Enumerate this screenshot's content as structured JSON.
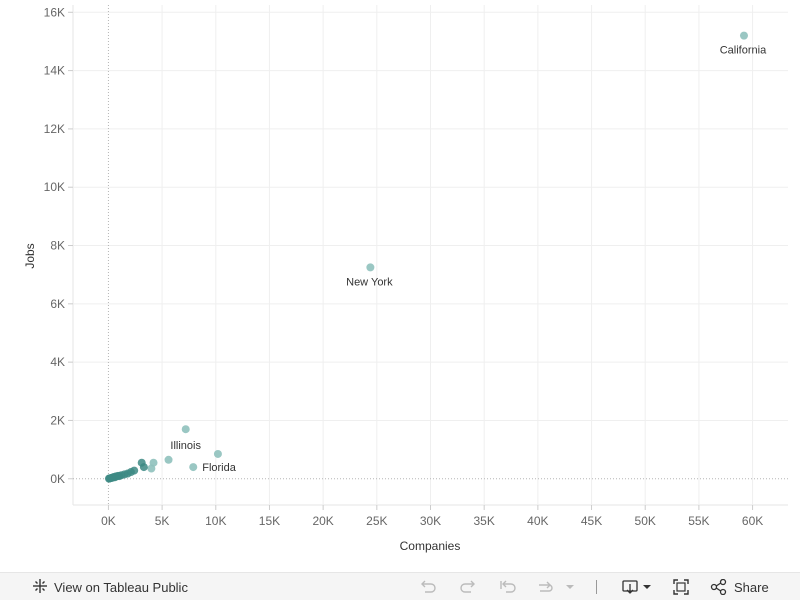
{
  "chart_data": {
    "type": "scatter",
    "title": "",
    "xlabel": "Companies",
    "ylabel": "Jobs",
    "xlim": [
      -3300,
      63300
    ],
    "ylim": [
      -900,
      16250
    ],
    "xticks": [
      0,
      5000,
      10000,
      15000,
      20000,
      25000,
      30000,
      35000,
      40000,
      45000,
      50000,
      55000,
      60000
    ],
    "xtick_labels": [
      "0K",
      "5K",
      "10K",
      "15K",
      "20K",
      "25K",
      "30K",
      "35K",
      "40K",
      "45K",
      "50K",
      "55K",
      "60K"
    ],
    "yticks": [
      0,
      2000,
      4000,
      6000,
      8000,
      10000,
      12000,
      14000,
      16000
    ],
    "ytick_labels": [
      "0K",
      "2K",
      "4K",
      "6K",
      "8K",
      "10K",
      "12K",
      "14K",
      "16K"
    ],
    "grid": true,
    "zero_lines": true,
    "marker_color": "#8fc1bd",
    "marker_dark_color": "#3d8a84",
    "points": [
      {
        "x": 59200,
        "y": 15200,
        "label": "California"
      },
      {
        "x": 24400,
        "y": 7250,
        "label": "New York"
      },
      {
        "x": 7200,
        "y": 1700,
        "label": "Illinois"
      },
      {
        "x": 7900,
        "y": 400,
        "label": "Florida"
      },
      {
        "x": 10200,
        "y": 850
      },
      {
        "x": 5600,
        "y": 650
      },
      {
        "x": 4200,
        "y": 550
      },
      {
        "x": 4000,
        "y": 350
      },
      {
        "x": 3100,
        "y": 550
      },
      {
        "x": 3300,
        "y": 400
      },
      {
        "x": 2400,
        "y": 280
      },
      {
        "x": 2100,
        "y": 230
      },
      {
        "x": 1800,
        "y": 180
      },
      {
        "x": 1500,
        "y": 150
      },
      {
        "x": 1200,
        "y": 120
      },
      {
        "x": 900,
        "y": 100
      },
      {
        "x": 700,
        "y": 80
      },
      {
        "x": 500,
        "y": 60
      },
      {
        "x": 400,
        "y": 40
      },
      {
        "x": 300,
        "y": 30
      },
      {
        "x": 200,
        "y": 20
      },
      {
        "x": 100,
        "y": 10
      },
      {
        "x": 50,
        "y": 5
      },
      {
        "x": 1000,
        "y": 90
      },
      {
        "x": 600,
        "y": 50
      }
    ]
  },
  "footer": {
    "view_link_label": "View on Tableau Public",
    "share_label": "Share"
  }
}
